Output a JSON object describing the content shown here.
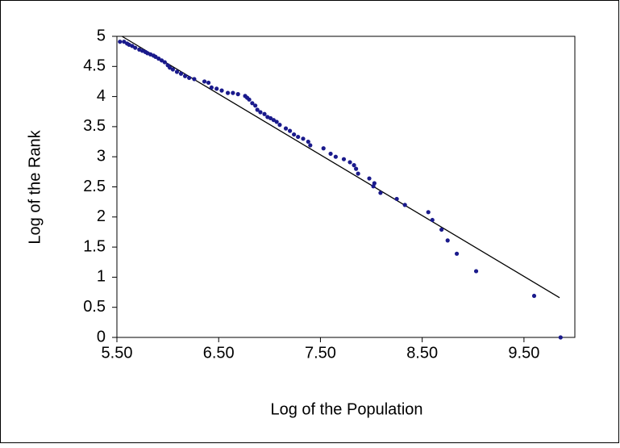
{
  "chart_data": {
    "type": "scatter",
    "x_label": "Log of the Population",
    "y_label": "Log of the Rank",
    "xlim": [
      5.5,
      10.0
    ],
    "ylim": [
      0,
      5
    ],
    "xticks": [
      {
        "value": 5.5,
        "label": "5.50"
      },
      {
        "value": 6.5,
        "label": "6.50"
      },
      {
        "value": 7.5,
        "label": "7.50"
      },
      {
        "value": 8.5,
        "label": "8.50"
      },
      {
        "value": 9.5,
        "label": "9.50"
      }
    ],
    "yticks": [
      0,
      0.5,
      1,
      1.5,
      2,
      2.5,
      3,
      3.5,
      4,
      4.5,
      5
    ],
    "points": {
      "color": "#1a1a8c",
      "x": [
        5.53,
        5.57,
        5.6,
        5.62,
        5.65,
        5.68,
        5.72,
        5.75,
        5.78,
        5.8,
        5.83,
        5.86,
        5.88,
        5.91,
        5.94,
        5.97,
        6.0,
        6.02,
        6.05,
        6.09,
        6.13,
        6.17,
        6.21,
        6.26,
        6.36,
        6.4,
        6.43,
        6.48,
        6.53,
        6.59,
        6.64,
        6.69,
        6.76,
        6.78,
        6.8,
        6.83,
        6.86,
        6.88,
        6.91,
        6.95,
        6.98,
        7.01,
        7.04,
        7.07,
        7.1,
        7.16,
        7.2,
        7.24,
        7.28,
        7.33,
        7.38,
        7.4,
        7.53,
        7.6,
        7.65,
        7.73,
        7.79,
        7.83,
        7.85,
        7.87,
        7.98,
        8.03,
        8.02,
        8.09,
        8.25,
        8.33,
        8.56,
        8.6,
        8.69,
        8.75,
        8.84,
        9.03,
        9.6,
        9.86
      ],
      "y": [
        4.91,
        4.91,
        4.88,
        4.86,
        4.84,
        4.81,
        4.78,
        4.76,
        4.74,
        4.72,
        4.7,
        4.68,
        4.66,
        4.63,
        4.6,
        4.57,
        4.52,
        4.48,
        4.45,
        4.41,
        4.38,
        4.34,
        4.31,
        4.29,
        4.25,
        4.23,
        4.15,
        4.13,
        4.1,
        4.06,
        4.06,
        4.04,
        4.01,
        3.98,
        3.95,
        3.89,
        3.85,
        3.78,
        3.74,
        3.71,
        3.66,
        3.64,
        3.61,
        3.58,
        3.53,
        3.47,
        3.43,
        3.37,
        3.33,
        3.3,
        3.25,
        3.19,
        3.14,
        3.05,
        3.0,
        2.96,
        2.91,
        2.86,
        2.8,
        2.72,
        2.64,
        2.56,
        2.51,
        2.4,
        2.3,
        2.2,
        2.08,
        1.95,
        1.79,
        1.61,
        1.39,
        1.1,
        0.69,
        0
      ]
    },
    "trendline": {
      "color": "#000000",
      "x": [
        5.55,
        9.85
      ],
      "y": [
        5.0,
        0.66
      ]
    }
  }
}
